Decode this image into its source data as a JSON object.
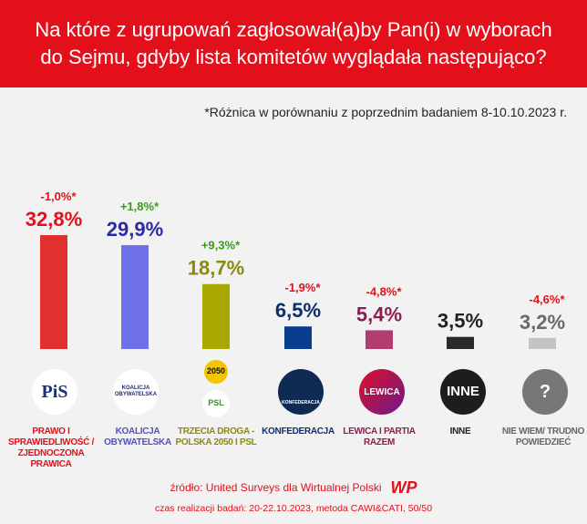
{
  "header": {
    "title_line1": "Na które z ugrupowań zagłosował(a)by Pan(i) w wyborach",
    "title_line2": "do Sejmu, gdyby lista komitetów wyglądała następująco?"
  },
  "note": "*Różnica w porównaniu z poprzednim badaniem 8-10.10.2023 r.",
  "chart_data": {
    "type": "bar",
    "categories": [
      "PRAWO I SPRAWIEDLIWOŚĆ / ZJEDNOCZONA PRAWICA",
      "KOALICJA OBYWATELSKA",
      "TRZECIA DROGA - POLSKA 2050 I PSL",
      "KONFEDERACJA",
      "LEWICA I PARTIA RAZEM",
      "INNE",
      "NIE WIEM/ TRUDNO POWIEDZIEĆ"
    ],
    "values": [
      32.8,
      29.9,
      18.7,
      6.5,
      5.4,
      3.5,
      3.2
    ],
    "value_labels": [
      "32,8%",
      "29,9%",
      "18,7%",
      "6,5%",
      "5,4%",
      "3,5%",
      "3,2%"
    ],
    "change_labels": [
      "-1,0%*",
      "+1,8%*",
      "+9,3%*",
      "-1,9%*",
      "-4,8%*",
      "",
      "-4,6%*"
    ],
    "bar_colors": [
      "#e03030",
      "#7070e8",
      "#a8a800",
      "#083c8c",
      "#b03c70",
      "#2a2a2a",
      "#c4c4c4"
    ],
    "value_colors": [
      "#e3101b",
      "#2b2ba8",
      "#8a8a10",
      "#0a2f6e",
      "#8c1e50",
      "#222222",
      "#6a6a6a"
    ],
    "change_colors": [
      "#e3101b",
      "#3a9a1e",
      "#3a9a1e",
      "#e3101b",
      "#e3101b",
      "",
      "#e3101b"
    ],
    "label_colors": [
      "#e3101b",
      "#5050c8",
      "#8a8a10",
      "#0a2f6e",
      "#8c1e50",
      "#222222",
      "#666666"
    ],
    "ylim": [
      0,
      35
    ]
  },
  "logos": [
    "PiS",
    "KOALICJA OBYWATELSKA",
    "2050",
    "PSL",
    "KONFEDERACJA",
    "LEWICA",
    "INNE",
    "?"
  ],
  "footer": {
    "source": "źródło: United Surveys dla Wirtualnej Polski",
    "brand": "WP",
    "method": "czas realizacji badań: 20-22.10.2023, metoda CAWI&CATI, 50/50"
  }
}
